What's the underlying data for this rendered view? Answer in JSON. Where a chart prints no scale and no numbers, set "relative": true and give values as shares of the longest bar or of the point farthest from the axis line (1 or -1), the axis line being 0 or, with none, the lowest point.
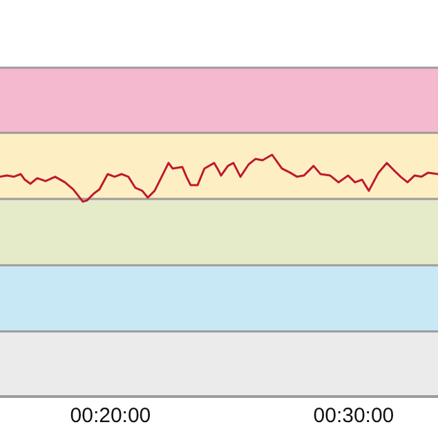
{
  "chart_data": {
    "type": "line",
    "relative": true,
    "color": "#c0182e",
    "x": [
      0.2576,
      0.2623,
      0.267,
      0.2718,
      0.2746,
      0.2784,
      0.2831,
      0.2888,
      0.2954,
      0.3021,
      0.3078,
      0.3144,
      0.3172,
      0.322,
      0.3258,
      0.3314,
      0.3362,
      0.3409,
      0.3456,
      0.3504,
      0.3551,
      0.3589,
      0.3636,
      0.3684,
      0.3731,
      0.3759,
      0.3826,
      0.3854,
      0.3883,
      0.393,
      0.3977,
      0.4044,
      0.4072,
      0.4091,
      0.4138,
      0.4176,
      0.4224,
      0.428,
      0.4328,
      0.4375,
      0.4441,
      0.4508,
      0.4564,
      0.4612,
      0.4659,
      0.4725,
      0.4773,
      0.4839,
      0.4896,
      0.4962,
      0.5009,
      0.5057,
      0.5104,
      0.517,
      0.5227,
      0.5274,
      0.5322,
      0.5369,
      0.5417,
      0.5464,
      0.5511,
      0.5578
    ],
    "values": [
      0.909,
      0.914,
      0.909,
      0.92,
      0.897,
      0.88,
      0.903,
      0.891,
      0.909,
      0.886,
      0.857,
      0.806,
      0.811,
      0.84,
      0.857,
      0.92,
      0.909,
      0.92,
      0.909,
      0.863,
      0.851,
      0.823,
      0.851,
      0.909,
      0.966,
      0.943,
      0.949,
      0.909,
      0.874,
      0.874,
      0.943,
      0.966,
      0.937,
      0.914,
      0.954,
      0.966,
      0.909,
      0.96,
      0.983,
      0.977,
      1,
      0.943,
      0.926,
      0.909,
      0.914,
      0.954,
      0.92,
      0.914,
      0.886,
      0.914,
      0.886,
      0.897,
      0.851,
      0.926,
      0.966,
      0.937,
      0.909,
      0.886,
      0.914,
      0.909,
      0.926,
      0.92
    ],
    "xlim": [
      0.2576,
      0.5578
    ],
    "xticks": [
      {
        "value": 0.33333,
        "label": "00:20:00"
      },
      {
        "value": 0.5,
        "label": "00:30:00"
      }
    ],
    "bands": [
      {
        "axis": "y",
        "from": 0,
        "to": 0.269,
        "color": "#ebebeb"
      },
      {
        "axis": "y",
        "from": 0.269,
        "to": 0.543,
        "color": "#c8e8f6"
      },
      {
        "axis": "y",
        "from": 0.543,
        "to": 0.817,
        "color": "#e5eac9"
      },
      {
        "axis": "y",
        "from": 0.817,
        "to": 1.091,
        "color": "#fdefc3"
      },
      {
        "axis": "y",
        "from": 1.091,
        "to": 1.36,
        "color": "#f4b8cf"
      }
    ]
  }
}
